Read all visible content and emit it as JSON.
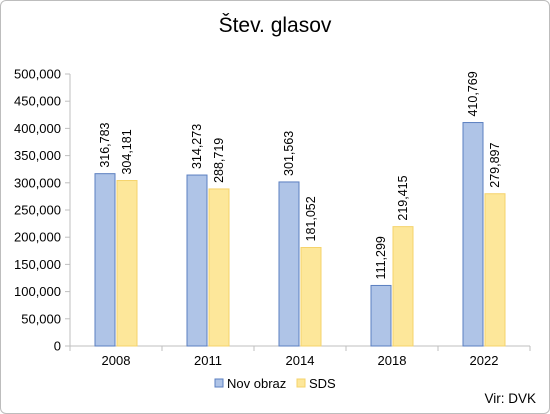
{
  "chart_data": {
    "type": "bar",
    "title": "Štev. glasov",
    "categories": [
      "2008",
      "2011",
      "2014",
      "2018",
      "2022"
    ],
    "series": [
      {
        "name": "Nov obraz",
        "values": [
          316783,
          314273,
          301563,
          111299,
          410769
        ],
        "labels": [
          "316,783",
          "314,273",
          "301,563",
          "111,299",
          "410,769"
        ],
        "color": "#afc4e7",
        "stroke": "#5b7fc0"
      },
      {
        "name": "SDS",
        "values": [
          304181,
          288719,
          181052,
          219415,
          279897
        ],
        "labels": [
          "304,181",
          "288,719",
          "181,052",
          "219,415",
          "279,897"
        ],
        "color": "#fde79a",
        "stroke": "#f5d36b"
      }
    ],
    "ylim": [
      0,
      500000
    ],
    "yticks": [
      0,
      50000,
      100000,
      150000,
      200000,
      250000,
      300000,
      350000,
      400000,
      450000,
      500000
    ],
    "ytick_labels": [
      "0",
      "50,000",
      "100,000",
      "150,000",
      "200,000",
      "250,000",
      "300,000",
      "350,000",
      "400,000",
      "450,000",
      "500,000"
    ],
    "grid": false,
    "legend": "bottom",
    "source": "Vir: DVK"
  }
}
